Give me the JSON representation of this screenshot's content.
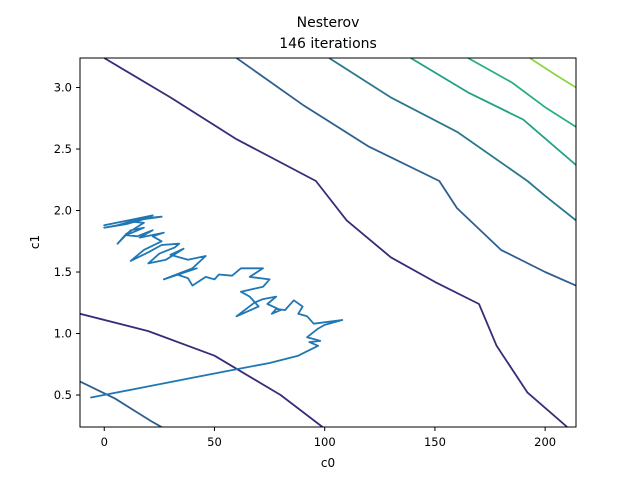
{
  "chart_data": {
    "type": "line",
    "title_lines": [
      "Nesterov",
      "146 iterations"
    ],
    "xlabel": "c0",
    "ylabel": "c1",
    "xlim": [
      -11,
      214
    ],
    "ylim": [
      0.24,
      3.24
    ],
    "xticks": [
      0,
      50,
      100,
      150,
      200
    ],
    "xtick_labels": [
      "0",
      "50",
      "100",
      "150",
      "200"
    ],
    "yticks": [
      0.5,
      1.0,
      1.5,
      2.0,
      2.5,
      3.0
    ],
    "ytick_labels": [
      "0.5",
      "1.0",
      "1.5",
      "2.0",
      "2.5",
      "3.0"
    ],
    "grid": false,
    "contours": [
      {
        "color": "#3b2a78",
        "points": [
          [
            -11,
            1.16
          ],
          [
            20,
            1.02
          ],
          [
            50,
            0.82
          ],
          [
            80,
            0.5
          ],
          [
            99,
            0.24
          ]
        ]
      },
      {
        "color": "#3b2a78",
        "points": [
          [
            0,
            3.24
          ],
          [
            30,
            2.92
          ],
          [
            60,
            2.58
          ],
          [
            96,
            2.24
          ],
          [
            110,
            1.92
          ],
          [
            130,
            1.62
          ],
          [
            150,
            1.42
          ],
          [
            170,
            1.24
          ],
          [
            178,
            0.9
          ],
          [
            192,
            0.52
          ],
          [
            210,
            0.24
          ]
        ]
      },
      {
        "color": "#2f5f8f",
        "points": [
          [
            -11,
            0.61
          ],
          [
            5,
            0.47
          ],
          [
            22,
            0.28
          ],
          [
            26,
            0.24
          ]
        ]
      },
      {
        "color": "#2f5f8f",
        "points": [
          [
            60,
            3.24
          ],
          [
            90,
            2.86
          ],
          [
            120,
            2.52
          ],
          [
            152,
            2.24
          ],
          [
            160,
            2.02
          ],
          [
            180,
            1.68
          ],
          [
            200,
            1.5
          ],
          [
            214,
            1.39
          ]
        ]
      },
      {
        "color": "#29788e",
        "points": [
          [
            102,
            3.24
          ],
          [
            130,
            2.92
          ],
          [
            160,
            2.64
          ],
          [
            192,
            2.24
          ],
          [
            200,
            2.12
          ],
          [
            214,
            1.92
          ]
        ]
      },
      {
        "color": "#22a187",
        "points": [
          [
            139,
            3.24
          ],
          [
            165,
            2.96
          ],
          [
            190,
            2.74
          ],
          [
            214,
            2.37
          ]
        ]
      },
      {
        "color": "#2ab07f",
        "points": [
          [
            165,
            3.24
          ],
          [
            185,
            3.04
          ],
          [
            200,
            2.84
          ],
          [
            214,
            2.68
          ]
        ]
      },
      {
        "color": "#8dd544",
        "points": [
          [
            193,
            3.24
          ],
          [
            205,
            3.1
          ],
          [
            214,
            3.0
          ]
        ]
      }
    ],
    "series": [
      {
        "color": "#1f77b4",
        "points": [
          [
            -6,
            0.48
          ],
          [
            20,
            0.57
          ],
          [
            40,
            0.64
          ],
          [
            60,
            0.71
          ],
          [
            75,
            0.76
          ],
          [
            88,
            0.82
          ],
          [
            97,
            0.9
          ],
          [
            93,
            0.93
          ],
          [
            98,
            0.94
          ],
          [
            92,
            0.97
          ],
          [
            97,
            1.04
          ],
          [
            100,
            1.07
          ],
          [
            108,
            1.11
          ],
          [
            95,
            1.08
          ],
          [
            92,
            1.14
          ],
          [
            88,
            1.16
          ],
          [
            90,
            1.22
          ],
          [
            86,
            1.27
          ],
          [
            82,
            1.19
          ],
          [
            78,
            1.2
          ],
          [
            76,
            1.16
          ],
          [
            80,
            1.19
          ],
          [
            74,
            1.24
          ],
          [
            78,
            1.3
          ],
          [
            72,
            1.28
          ],
          [
            68,
            1.25
          ],
          [
            60,
            1.14
          ],
          [
            70,
            1.22
          ],
          [
            66,
            1.3
          ],
          [
            62,
            1.34
          ],
          [
            72,
            1.38
          ],
          [
            75,
            1.44
          ],
          [
            66,
            1.46
          ],
          [
            72,
            1.53
          ],
          [
            62,
            1.53
          ],
          [
            58,
            1.47
          ],
          [
            52,
            1.48
          ],
          [
            50,
            1.44
          ],
          [
            46,
            1.46
          ],
          [
            40,
            1.39
          ],
          [
            38,
            1.45
          ],
          [
            33,
            1.48
          ],
          [
            42,
            1.53
          ],
          [
            27,
            1.44
          ],
          [
            40,
            1.53
          ],
          [
            46,
            1.63
          ],
          [
            38,
            1.6
          ],
          [
            30,
            1.64
          ],
          [
            36,
            1.69
          ],
          [
            28,
            1.6
          ],
          [
            20,
            1.57
          ],
          [
            25,
            1.65
          ],
          [
            32,
            1.7
          ],
          [
            34,
            1.73
          ],
          [
            26,
            1.72
          ],
          [
            20,
            1.66
          ],
          [
            12,
            1.59
          ],
          [
            18,
            1.68
          ],
          [
            26,
            1.75
          ],
          [
            22,
            1.79
          ],
          [
            27,
            1.82
          ],
          [
            16,
            1.78
          ],
          [
            22,
            1.84
          ],
          [
            15,
            1.79
          ],
          [
            10,
            1.8
          ],
          [
            18,
            1.86
          ],
          [
            12,
            1.84
          ],
          [
            6,
            1.73
          ],
          [
            10,
            1.81
          ],
          [
            18,
            1.9
          ],
          [
            12,
            1.91
          ],
          [
            6,
            1.88
          ],
          [
            0,
            1.86
          ],
          [
            10,
            1.89
          ],
          [
            20,
            1.94
          ],
          [
            26,
            1.95
          ],
          [
            14,
            1.92
          ],
          [
            8,
            1.89
          ],
          [
            16,
            1.93
          ],
          [
            22,
            1.96
          ],
          [
            0,
            1.88
          ]
        ]
      }
    ]
  }
}
